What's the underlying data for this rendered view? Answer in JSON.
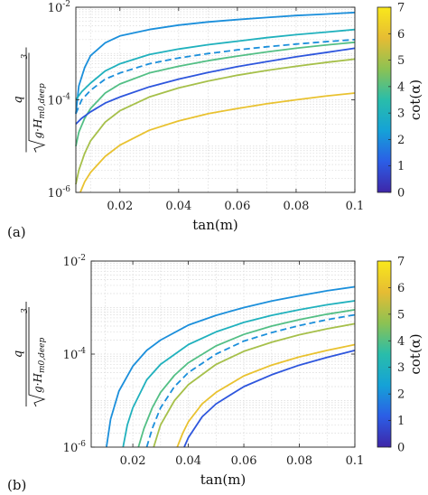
{
  "colormap": [
    "#3e26a8",
    "#2b5ee6",
    "#15a2d7",
    "#29bdaa",
    "#8cc253",
    "#e6bc33",
    "#f9e81b"
  ],
  "chart_data": [
    {
      "type": "line",
      "panel_label": "(a)",
      "xlabel": "tan(m)",
      "ylabel": {
        "numerator": "q",
        "radicand": "g·H",
        "subscript": "m0,deep",
        "power": "3"
      },
      "xlim": [
        0.005,
        0.1
      ],
      "ylim": [
        1e-06,
        0.01
      ],
      "yscale": "log",
      "grid": true,
      "xticks": [
        0.02,
        0.04,
        0.06,
        0.08,
        0.1
      ],
      "xtick_labels": [
        "0.02",
        "0.04",
        "0.06",
        "0.08",
        "0.1"
      ],
      "yticks": [
        1e-06,
        0.0001,
        0.01
      ],
      "ytick_labels": [
        {
          "base": "10",
          "exp": "-6"
        },
        {
          "base": "10",
          "exp": "-4"
        },
        {
          "base": "10",
          "exp": "-2"
        }
      ],
      "colorbar": {
        "label": "cot(α)",
        "range": [
          0,
          7
        ],
        "ticks": [
          "0",
          "1",
          "2",
          "3",
          "4",
          "5",
          "6",
          "7"
        ]
      },
      "series": [
        {
          "color_value": 2.0,
          "style": "solid",
          "x": [
            0.005,
            0.006,
            0.008,
            0.01,
            0.015,
            0.02,
            0.03,
            0.04,
            0.05,
            0.06,
            0.07,
            0.08,
            0.09,
            0.1
          ],
          "y": [
            5e-05,
            0.0002,
            0.0005,
            0.0009,
            0.0017,
            0.0024,
            0.0033,
            0.0041,
            0.0048,
            0.0054,
            0.006,
            0.0066,
            0.0071,
            0.0077
          ]
        },
        {
          "color_value": 3.0,
          "style": "solid",
          "x": [
            0.005,
            0.007,
            0.01,
            0.015,
            0.02,
            0.03,
            0.04,
            0.05,
            0.06,
            0.07,
            0.08,
            0.09,
            0.1
          ],
          "y": [
            0.0001,
            0.00015,
            0.00023,
            0.00042,
            0.0006,
            0.00095,
            0.00125,
            0.00155,
            0.00185,
            0.0022,
            0.00255,
            0.0029,
            0.0033
          ]
        },
        {
          "color_value": 2.0,
          "style": "dashed",
          "x": [
            0.005,
            0.007,
            0.01,
            0.015,
            0.02,
            0.03,
            0.04,
            0.05,
            0.06,
            0.07,
            0.08,
            0.09,
            0.1
          ],
          "y": [
            5e-05,
            0.0001,
            0.00016,
            0.00028,
            0.00038,
            0.0006,
            0.0008,
            0.001,
            0.0012,
            0.0014,
            0.0016,
            0.0018,
            0.002
          ]
        },
        {
          "color_value": 4.0,
          "style": "solid",
          "x": [
            0.005,
            0.006,
            0.008,
            0.01,
            0.015,
            0.02,
            0.03,
            0.04,
            0.05,
            0.06,
            0.07,
            0.08,
            0.09,
            0.1
          ],
          "y": [
            1e-05,
            2e-05,
            4e-05,
            6.5e-05,
            0.00014,
            0.00022,
            0.00038,
            0.00053,
            0.0007,
            0.00088,
            0.00108,
            0.0013,
            0.00152,
            0.00175
          ]
        },
        {
          "color_value": 1.0,
          "style": "solid",
          "x": [
            0.005,
            0.007,
            0.01,
            0.015,
            0.02,
            0.03,
            0.04,
            0.05,
            0.06,
            0.07,
            0.08,
            0.09,
            0.1
          ],
          "y": [
            3e-05,
            4e-05,
            5.5e-05,
            8.5e-05,
            0.000115,
            0.00019,
            0.00028,
            0.00039,
            0.00052,
            0.00067,
            0.00085,
            0.00105,
            0.0013
          ]
        },
        {
          "color_value": 5.0,
          "style": "solid",
          "x": [
            0.005,
            0.006,
            0.008,
            0.01,
            0.015,
            0.02,
            0.03,
            0.04,
            0.05,
            0.06,
            0.07,
            0.08,
            0.09,
            0.1
          ],
          "y": [
            1.5e-06,
            3e-06,
            7e-06,
            1.3e-05,
            3.3e-05,
            5.8e-05,
            0.000115,
            0.00018,
            0.000255,
            0.00034,
            0.00043,
            0.00053,
            0.00064,
            0.00076
          ]
        },
        {
          "color_value": 6.0,
          "style": "solid",
          "x": [
            0.0065,
            0.008,
            0.01,
            0.015,
            0.02,
            0.03,
            0.04,
            0.05,
            0.06,
            0.07,
            0.08,
            0.09,
            0.1
          ],
          "y": [
            1e-06,
            1.7e-06,
            2.7e-06,
            6e-06,
            1.05e-05,
            2.2e-05,
            3.5e-05,
            5e-05,
            6.5e-05,
            8.2e-05,
            0.0001,
            0.00012,
            0.00014
          ]
        }
      ]
    },
    {
      "type": "line",
      "panel_label": "(b)",
      "xlabel": "tan(m)",
      "ylabel": {
        "numerator": "q",
        "radicand": "g·H",
        "subscript": "m0,deep",
        "power": "3"
      },
      "xlim": [
        0.005,
        0.1
      ],
      "ylim": [
        1e-06,
        0.01
      ],
      "yscale": "log",
      "grid": true,
      "xticks": [
        0.02,
        0.04,
        0.06,
        0.08,
        0.1
      ],
      "xtick_labels": [
        "0.02",
        "0.04",
        "0.06",
        "0.08",
        "0.1"
      ],
      "yticks": [
        1e-06,
        0.0001,
        0.01
      ],
      "ytick_labels": [
        {
          "base": "10",
          "exp": "-6"
        },
        {
          "base": "10",
          "exp": "-4"
        },
        {
          "base": "10",
          "exp": "-2"
        }
      ],
      "colorbar": {
        "label": "cot(α)",
        "range": [
          0,
          7
        ],
        "ticks": [
          "0",
          "1",
          "2",
          "3",
          "4",
          "5",
          "6",
          "7"
        ]
      },
      "series": [
        {
          "color_value": 2.0,
          "style": "solid",
          "x": [
            0.0105,
            0.012,
            0.015,
            0.02,
            0.025,
            0.03,
            0.04,
            0.05,
            0.06,
            0.07,
            0.08,
            0.09,
            0.1
          ],
          "y": [
            1e-06,
            4e-06,
            1.6e-05,
            5.5e-05,
            0.00012,
            0.0002,
            0.00042,
            0.00068,
            0.001,
            0.00138,
            0.0018,
            0.0023,
            0.0028
          ]
        },
        {
          "color_value": 3.0,
          "style": "solid",
          "x": [
            0.0165,
            0.018,
            0.02,
            0.025,
            0.03,
            0.04,
            0.05,
            0.06,
            0.07,
            0.08,
            0.09,
            0.1
          ],
          "y": [
            1e-06,
            3e-06,
            7e-06,
            2.8e-05,
            6e-05,
            0.00016,
            0.0003,
            0.00048,
            0.00068,
            0.0009,
            0.00115,
            0.0014
          ]
        },
        {
          "color_value": 4.0,
          "style": "solid",
          "x": [
            0.022,
            0.024,
            0.027,
            0.03,
            0.035,
            0.04,
            0.05,
            0.06,
            0.07,
            0.08,
            0.09,
            0.1
          ],
          "y": [
            1e-06,
            2.5e-06,
            7e-06,
            1.5e-05,
            3.5e-05,
            6.5e-05,
            0.00015,
            0.000265,
            0.0004,
            0.00055,
            0.00072,
            0.0009
          ]
        },
        {
          "color_value": 2.0,
          "style": "dashed",
          "x": [
            0.025,
            0.027,
            0.03,
            0.035,
            0.04,
            0.05,
            0.06,
            0.07,
            0.08,
            0.09,
            0.1
          ],
          "y": [
            1e-06,
            2.5e-06,
            7e-06,
            2e-05,
            4e-05,
            0.0001,
            0.00019,
            0.00029,
            0.00041,
            0.00055,
            0.0007
          ]
        },
        {
          "color_value": 5.0,
          "style": "solid",
          "x": [
            0.0275,
            0.03,
            0.035,
            0.04,
            0.05,
            0.06,
            0.07,
            0.08,
            0.09,
            0.1
          ],
          "y": [
            1e-06,
            3e-06,
            1e-05,
            2.2e-05,
            6e-05,
            0.000115,
            0.00018,
            0.00026,
            0.00035,
            0.00045
          ]
        },
        {
          "color_value": 6.0,
          "style": "solid",
          "x": [
            0.036,
            0.038,
            0.04,
            0.045,
            0.05,
            0.06,
            0.07,
            0.08,
            0.09,
            0.1
          ],
          "y": [
            1e-06,
            2e-06,
            3.5e-06,
            8.5e-06,
            1.5e-05,
            3.4e-05,
            5.8e-05,
            8.7e-05,
            0.00012,
            0.00016
          ]
        },
        {
          "color_value": 1.0,
          "style": "solid",
          "x": [
            0.0385,
            0.04,
            0.045,
            0.05,
            0.06,
            0.07,
            0.08,
            0.09,
            0.1
          ],
          "y": [
            1e-06,
            1.6e-06,
            4.5e-06,
            8.5e-06,
            2e-05,
            3.6e-05,
            5.8e-05,
            8.5e-05,
            0.00012
          ]
        }
      ]
    }
  ]
}
